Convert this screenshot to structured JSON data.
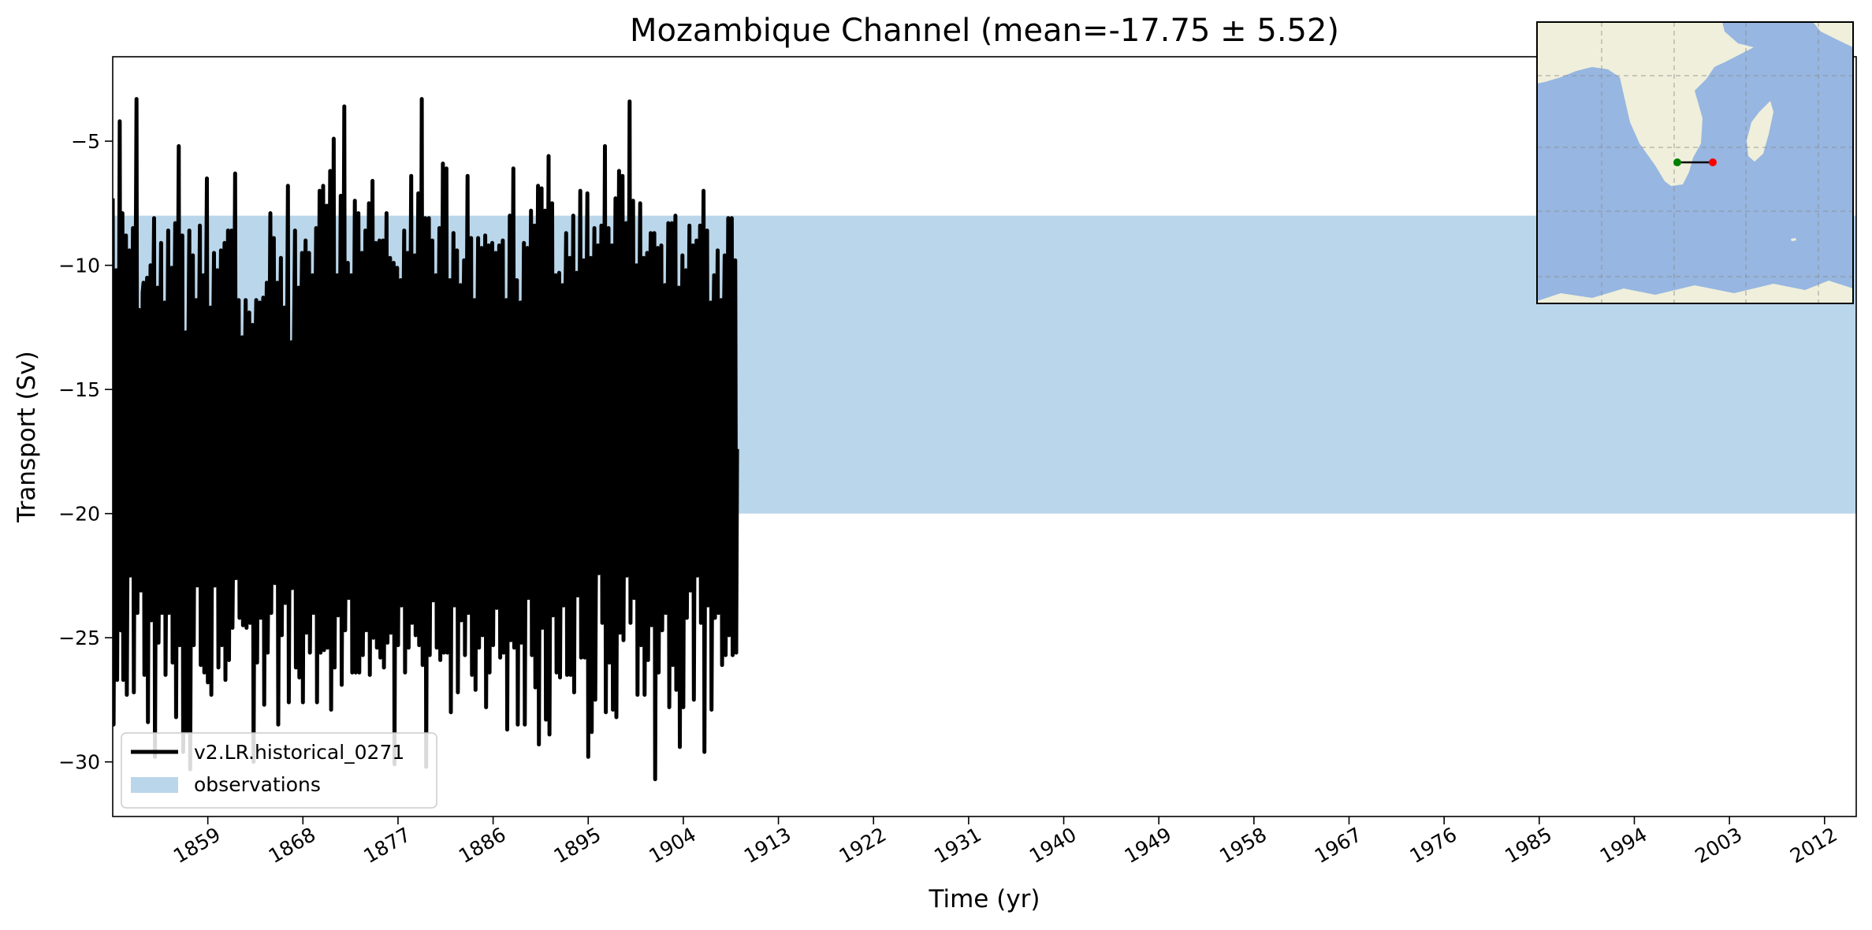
{
  "chart_data": {
    "type": "line",
    "title": "Mozambique Channel (mean=-17.75 ± 5.52)",
    "xlabel": "Time (yr)",
    "ylabel": "Transport (Sv)",
    "xlim": [
      1850,
      2015
    ],
    "ylim": [
      -32.2,
      -1.6
    ],
    "x_ticks": [
      1859,
      1868,
      1877,
      1886,
      1895,
      1904,
      1913,
      1922,
      1931,
      1940,
      1949,
      1958,
      1967,
      1976,
      1985,
      1994,
      2003,
      2012
    ],
    "x_tick_labels": [
      "1859",
      "1868",
      "1877",
      "1886",
      "1895",
      "1904",
      "1913",
      "1922",
      "1931",
      "1940",
      "1949",
      "1958",
      "1967",
      "1976",
      "1985",
      "1994",
      "2003",
      "2012"
    ],
    "y_ticks": [
      -30,
      -25,
      -20,
      -15,
      -10,
      -5
    ],
    "y_tick_labels": [
      "−30",
      "−25",
      "−20",
      "−15",
      "−10",
      "−5"
    ],
    "grid": false,
    "legend_position": "lower-left",
    "observations_band": {
      "name": "observations",
      "y_min": -20,
      "y_max": -8,
      "color": "#bad6ea"
    },
    "series": [
      {
        "name": "v2.LR.historical_0271",
        "color": "#000000",
        "x_start": 1850.0,
        "x_step": 0.0833333,
        "values": [
          -7.3,
          -28.5,
          -20.6,
          -13.4,
          -10.2,
          -26.7,
          -18.5,
          -14.4,
          -4.2,
          -24.7,
          -16.1,
          -7.9,
          -26.7,
          -19.0,
          -13.8,
          -8.8,
          -27.3,
          -20.2,
          -12.5,
          -9.4,
          -22.5,
          -17.4,
          -12.6,
          -8.5,
          -27.2,
          -18.3,
          -11.1,
          -3.3,
          -24.0,
          -19.8,
          -11.8,
          -14.8,
          -23.1,
          -18.3,
          -11.1,
          -10.7,
          -26.5,
          -20.1,
          -13.1,
          -10.5,
          -28.4,
          -18.9,
          -14.8,
          -10.0,
          -24.3,
          -19.9,
          -11.8,
          -8.1,
          -29.8,
          -21.6,
          -14.6,
          -10.9,
          -25.2,
          -20.3,
          -12.7,
          -9.1,
          -24.0,
          -17.5,
          -13.2,
          -11.5,
          -26.5,
          -21.1,
          -14.0,
          -8.6,
          -24.0,
          -19.6,
          -14.2,
          -10.1,
          -26.0,
          -20.2,
          -12.7,
          -8.3,
          -28.2,
          -19.7,
          -11.5,
          -5.2,
          -25.3,
          -18.5,
          -12.9,
          -8.8,
          -29.6,
          -21.1,
          -14.7,
          -12.7,
          -28.8,
          -19.0,
          -13.0,
          -8.6,
          -30.3,
          -21.4,
          -15.3,
          -9.6,
          -25.3,
          -17.8,
          -13.4,
          -11.4,
          -22.9,
          -19.9,
          -12.7,
          -8.4,
          -26.1,
          -20.5,
          -13.6,
          -10.4,
          -26.4,
          -19.2,
          -11.7,
          -6.5,
          -26.8,
          -18.1,
          -14.3,
          -11.7,
          -27.3,
          -19.5,
          -13.1,
          -9.5,
          -22.9,
          -18.6,
          -12.8,
          -10.2,
          -26.2,
          -20.3,
          -13.0,
          -9.4,
          -25.3,
          -20.3,
          -12.4,
          -9.1,
          -26.7,
          -19.1,
          -14.1,
          -8.6,
          -25.9,
          -18.4,
          -11.5,
          -8.6,
          -24.6,
          -20.4,
          -13.0,
          -6.3,
          -22.6,
          -18.5,
          -14.5,
          -11.4,
          -24.2,
          -19.1,
          -13.4,
          -12.9,
          -24.5,
          -19.7,
          -14.4,
          -11.4,
          -24.6,
          -21.2,
          -14.9,
          -11.9,
          -24.4,
          -21.0,
          -13.7,
          -12.4,
          -30.0,
          -20.6,
          -13.7,
          -11.4,
          -26.0,
          -19.3,
          -13.4,
          -11.5,
          -24.2,
          -19.5,
          -12.6,
          -11.3,
          -27.7,
          -19.2,
          -13.5,
          -10.7,
          -25.6,
          -21.3,
          -13.3,
          -7.9,
          -24.0,
          -17.5,
          -12.8,
          -8.9,
          -22.8,
          -19.3,
          -13.8,
          -10.7,
          -28.5,
          -20.7,
          -12.6,
          -9.7,
          -24.9,
          -18.1,
          -13.5,
          -11.7,
          -23.6,
          -18.3,
          -13.3,
          -6.8,
          -27.6,
          -19.6,
          -14.7,
          -13.1,
          -23.0,
          -18.3,
          -12.6,
          -8.6,
          -26.2,
          -19.6,
          -13.8,
          -10.9,
          -26.6,
          -20.2,
          -12.4,
          -9.5,
          -27.6,
          -18.7,
          -11.6,
          -9.0,
          -24.8,
          -19.7,
          -12.6,
          -9.5,
          -25.6,
          -19.8,
          -14.6,
          -10.4,
          -24.0,
          -17.4,
          -13.4,
          -8.5,
          -27.6,
          -17.9,
          -13.3,
          -7.0,
          -25.6,
          -19.2,
          -13.0,
          -6.8,
          -25.5,
          -19.7,
          -11.8,
          -7.6,
          -25.4,
          -19.0,
          -12.9,
          -6.2,
          -27.9,
          -20.2,
          -13.3,
          -4.9,
          -26.2,
          -18.4,
          -14.8,
          -10.4,
          -24.1,
          -19.9,
          -13.2,
          -7.2,
          -26.9,
          -19.9,
          -12.6,
          -3.6,
          -24.7,
          -18.8,
          -14.2,
          -9.9,
          -23.4,
          -18.7,
          -12.1,
          -10.4,
          -26.4,
          -18.6,
          -13.3,
          -7.4,
          -26.4,
          -18.1,
          -12.3,
          -7.9,
          -26.4,
          -18.3,
          -11.8,
          -9.5,
          -25.7,
          -20.7,
          -14.0,
          -8.6,
          -24.7,
          -20.5,
          -12.2,
          -7.5,
          -26.5,
          -18.5,
          -13.5,
          -6.6,
          -25.0,
          -20.5,
          -12.9,
          -9.1,
          -25.4,
          -20.6,
          -13.8,
          -9.0,
          -25.8,
          -17.7,
          -13.6,
          -9.0,
          -26.2,
          -20.4,
          -12.9,
          -7.9,
          -25.2,
          -20.3,
          -12.9,
          -9.7,
          -24.8,
          -20.7,
          -13.4,
          -9.9,
          -30.1,
          -19.5,
          -12.7,
          -10.1,
          -25.3,
          -19.3,
          -12.6,
          -10.6,
          -23.7,
          -19.2,
          -12.6,
          -8.6,
          -26.4,
          -18.2,
          -13.4,
          -9.5,
          -25.4,
          -18.3,
          -12.1,
          -6.4,
          -24.4,
          -17.0,
          -12.9,
          -9.6,
          -24.9,
          -20.7,
          -12.7,
          -7.1,
          -25.3,
          -18.7,
          -13.8,
          -3.3,
          -26.1,
          -20.6,
          -13.1,
          -8.1,
          -30.2,
          -20.0,
          -14.2,
          -8.1,
          -25.7,
          -19.5,
          -13.3,
          -9.0,
          -23.5,
          -19.1,
          -13.3,
          -10.4,
          -25.4,
          -18.6,
          -13.0,
          -8.5,
          -25.9,
          -19.3,
          -13.5,
          -5.9,
          -25.6,
          -17.8,
          -12.5,
          -6.1,
          -25.6,
          -20.0,
          -11.6,
          -10.6,
          -28.0,
          -17.8,
          -13.9,
          -8.7,
          -23.7,
          -18.9,
          -12.7,
          -9.4,
          -27.2,
          -19.5,
          -13.6,
          -10.8,
          -24.3,
          -20.3,
          -13.3,
          -9.8,
          -25.7,
          -20.0,
          -12.5,
          -6.4,
          -24.0,
          -19.8,
          -13.0,
          -8.9,
          -26.5,
          -18.1,
          -14.3,
          -11.4,
          -27.1,
          -18.1,
          -13.5,
          -8.9,
          -25.4,
          -18.9,
          -12.1,
          -9.3,
          -24.9,
          -20.3,
          -13.2,
          -8.8,
          -27.8,
          -20.4,
          -13.5,
          -9.2,
          -26.4,
          -17.6,
          -14.1,
          -9.1,
          -25.3,
          -19.0,
          -13.3,
          -9.5,
          -23.8,
          -19.8,
          -12.6,
          -9.2,
          -25.8,
          -18.8,
          -11.9,
          -9.0,
          -25.6,
          -20.0,
          -13.5,
          -11.4,
          -28.7,
          -19.8,
          -14.3,
          -8.0,
          -25.1,
          -18.7,
          -12.9,
          -6.1,
          -25.4,
          -19.2,
          -13.0,
          -10.6,
          -28.5,
          -19.7,
          -12.5,
          -11.5,
          -25.2,
          -19.0,
          -14.1,
          -9.1,
          -28.5,
          -19.5,
          -13.6,
          -9.3,
          -23.4,
          -19.6,
          -13.1,
          -7.8,
          -25.7,
          -18.2,
          -14.0,
          -8.4,
          -27.0,
          -19.6,
          -12.9,
          -6.8,
          -29.3,
          -20.1,
          -14.0,
          -6.9,
          -24.6,
          -19.7,
          -13.2,
          -7.8,
          -28.3,
          -19.9,
          -13.3,
          -5.6,
          -28.9,
          -20.6,
          -12.4,
          -7.5,
          -24.1,
          -17.2,
          -13.3,
          -10.4,
          -26.4,
          -18.9,
          -13.7,
          -10.3,
          -26.6,
          -20.2,
          -14.0,
          -10.8,
          -23.7,
          -19.9,
          -11.8,
          -8.7,
          -26.5,
          -18.8,
          -13.0,
          -9.7,
          -26.5,
          -20.6,
          -14.3,
          -8.0,
          -27.2,
          -17.8,
          -13.1,
          -10.3,
          -23.3,
          -19.9,
          -13.2,
          -7.0,
          -25.8,
          -18.4,
          -12.2,
          -9.8,
          -25.8,
          -19.6,
          -12.2,
          -7.1,
          -29.8,
          -18.6,
          -13.9,
          -9.7,
          -28.8,
          -17.9,
          -12.8,
          -8.5,
          -27.5,
          -20.8,
          -13.4,
          -9.2,
          -22.4,
          -19.4,
          -13.4,
          -8.4,
          -24.4,
          -18.8,
          -12.6,
          -5.2,
          -28.0,
          -18.6,
          -13.5,
          -8.5,
          -26.0,
          -19.4,
          -13.0,
          -9.2,
          -27.9,
          -20.1,
          -13.4,
          -7.3,
          -28.2,
          -19.7,
          -13.8,
          -6.2,
          -24.8,
          -19.5,
          -13.0,
          -6.4,
          -25.1,
          -17.5,
          -14.4,
          -8.3,
          -22.5,
          -19.1,
          -13.2,
          -3.4,
          -24.4,
          -17.6,
          -13.3,
          -7.4,
          -23.4,
          -19.2,
          -14.3,
          -10.0,
          -27.3,
          -17.5,
          -12.3,
          -7.5,
          -25.3,
          -18.9,
          -13.1,
          -9.7,
          -27.3,
          -20.2,
          -13.9,
          -9.5,
          -25.9,
          -19.0,
          -11.6,
          -8.7,
          -24.5,
          -19.3,
          -12.6,
          -8.7,
          -30.7,
          -20.7,
          -13.7,
          -9.3,
          -26.4,
          -18.7,
          -13.2,
          -9.2,
          -24.7,
          -18.9,
          -14.0,
          -10.8,
          -24.0,
          -19.2,
          -12.8,
          -8.3,
          -27.8,
          -19.7,
          -12.5,
          -8.3,
          -26.1,
          -18.1,
          -13.4,
          -8.0,
          -27.1,
          -18.4,
          -12.7,
          -10.9,
          -29.4,
          -18.8,
          -14.2,
          -9.6,
          -27.8,
          -18.1,
          -13.0,
          -10.2,
          -24.2,
          -19.2,
          -12.9,
          -8.4,
          -23.1,
          -19.1,
          -12.6,
          -9.2,
          -27.5,
          -18.0,
          -13.8,
          -9.0,
          -22.5,
          -18.8,
          -13.6,
          -8.4,
          -24.4,
          -19.5,
          -13.0,
          -7.0,
          -29.6,
          -18.0,
          -13.3,
          -8.6,
          -23.7,
          -20.3,
          -13.9,
          -11.5,
          -27.9,
          -20.6,
          -13.3,
          -10.4,
          -24.2,
          -18.5,
          -13.9,
          -9.4,
          -24.0,
          -20.0,
          -13.1,
          -11.4,
          -26.1,
          -20.0,
          -12.6,
          -9.6,
          -25.7,
          -19.4,
          -14.3,
          -8.1,
          -24.9,
          -18.7,
          -12.4,
          -8.1,
          -25.7,
          -19.9,
          -13.8,
          -9.8,
          -25.6,
          -17.4
        ]
      }
    ],
    "legend": [
      {
        "label": "v2.LR.historical_0271",
        "kind": "line",
        "color": "#000000"
      },
      {
        "label": "observations",
        "kind": "patch",
        "color": "#bad6ea"
      }
    ],
    "inset_map": {
      "ocean_color": "#97b6e1",
      "land_color": "#efefdb",
      "transect_start_color": "#008000",
      "transect_end_color": "#ff0000"
    }
  }
}
